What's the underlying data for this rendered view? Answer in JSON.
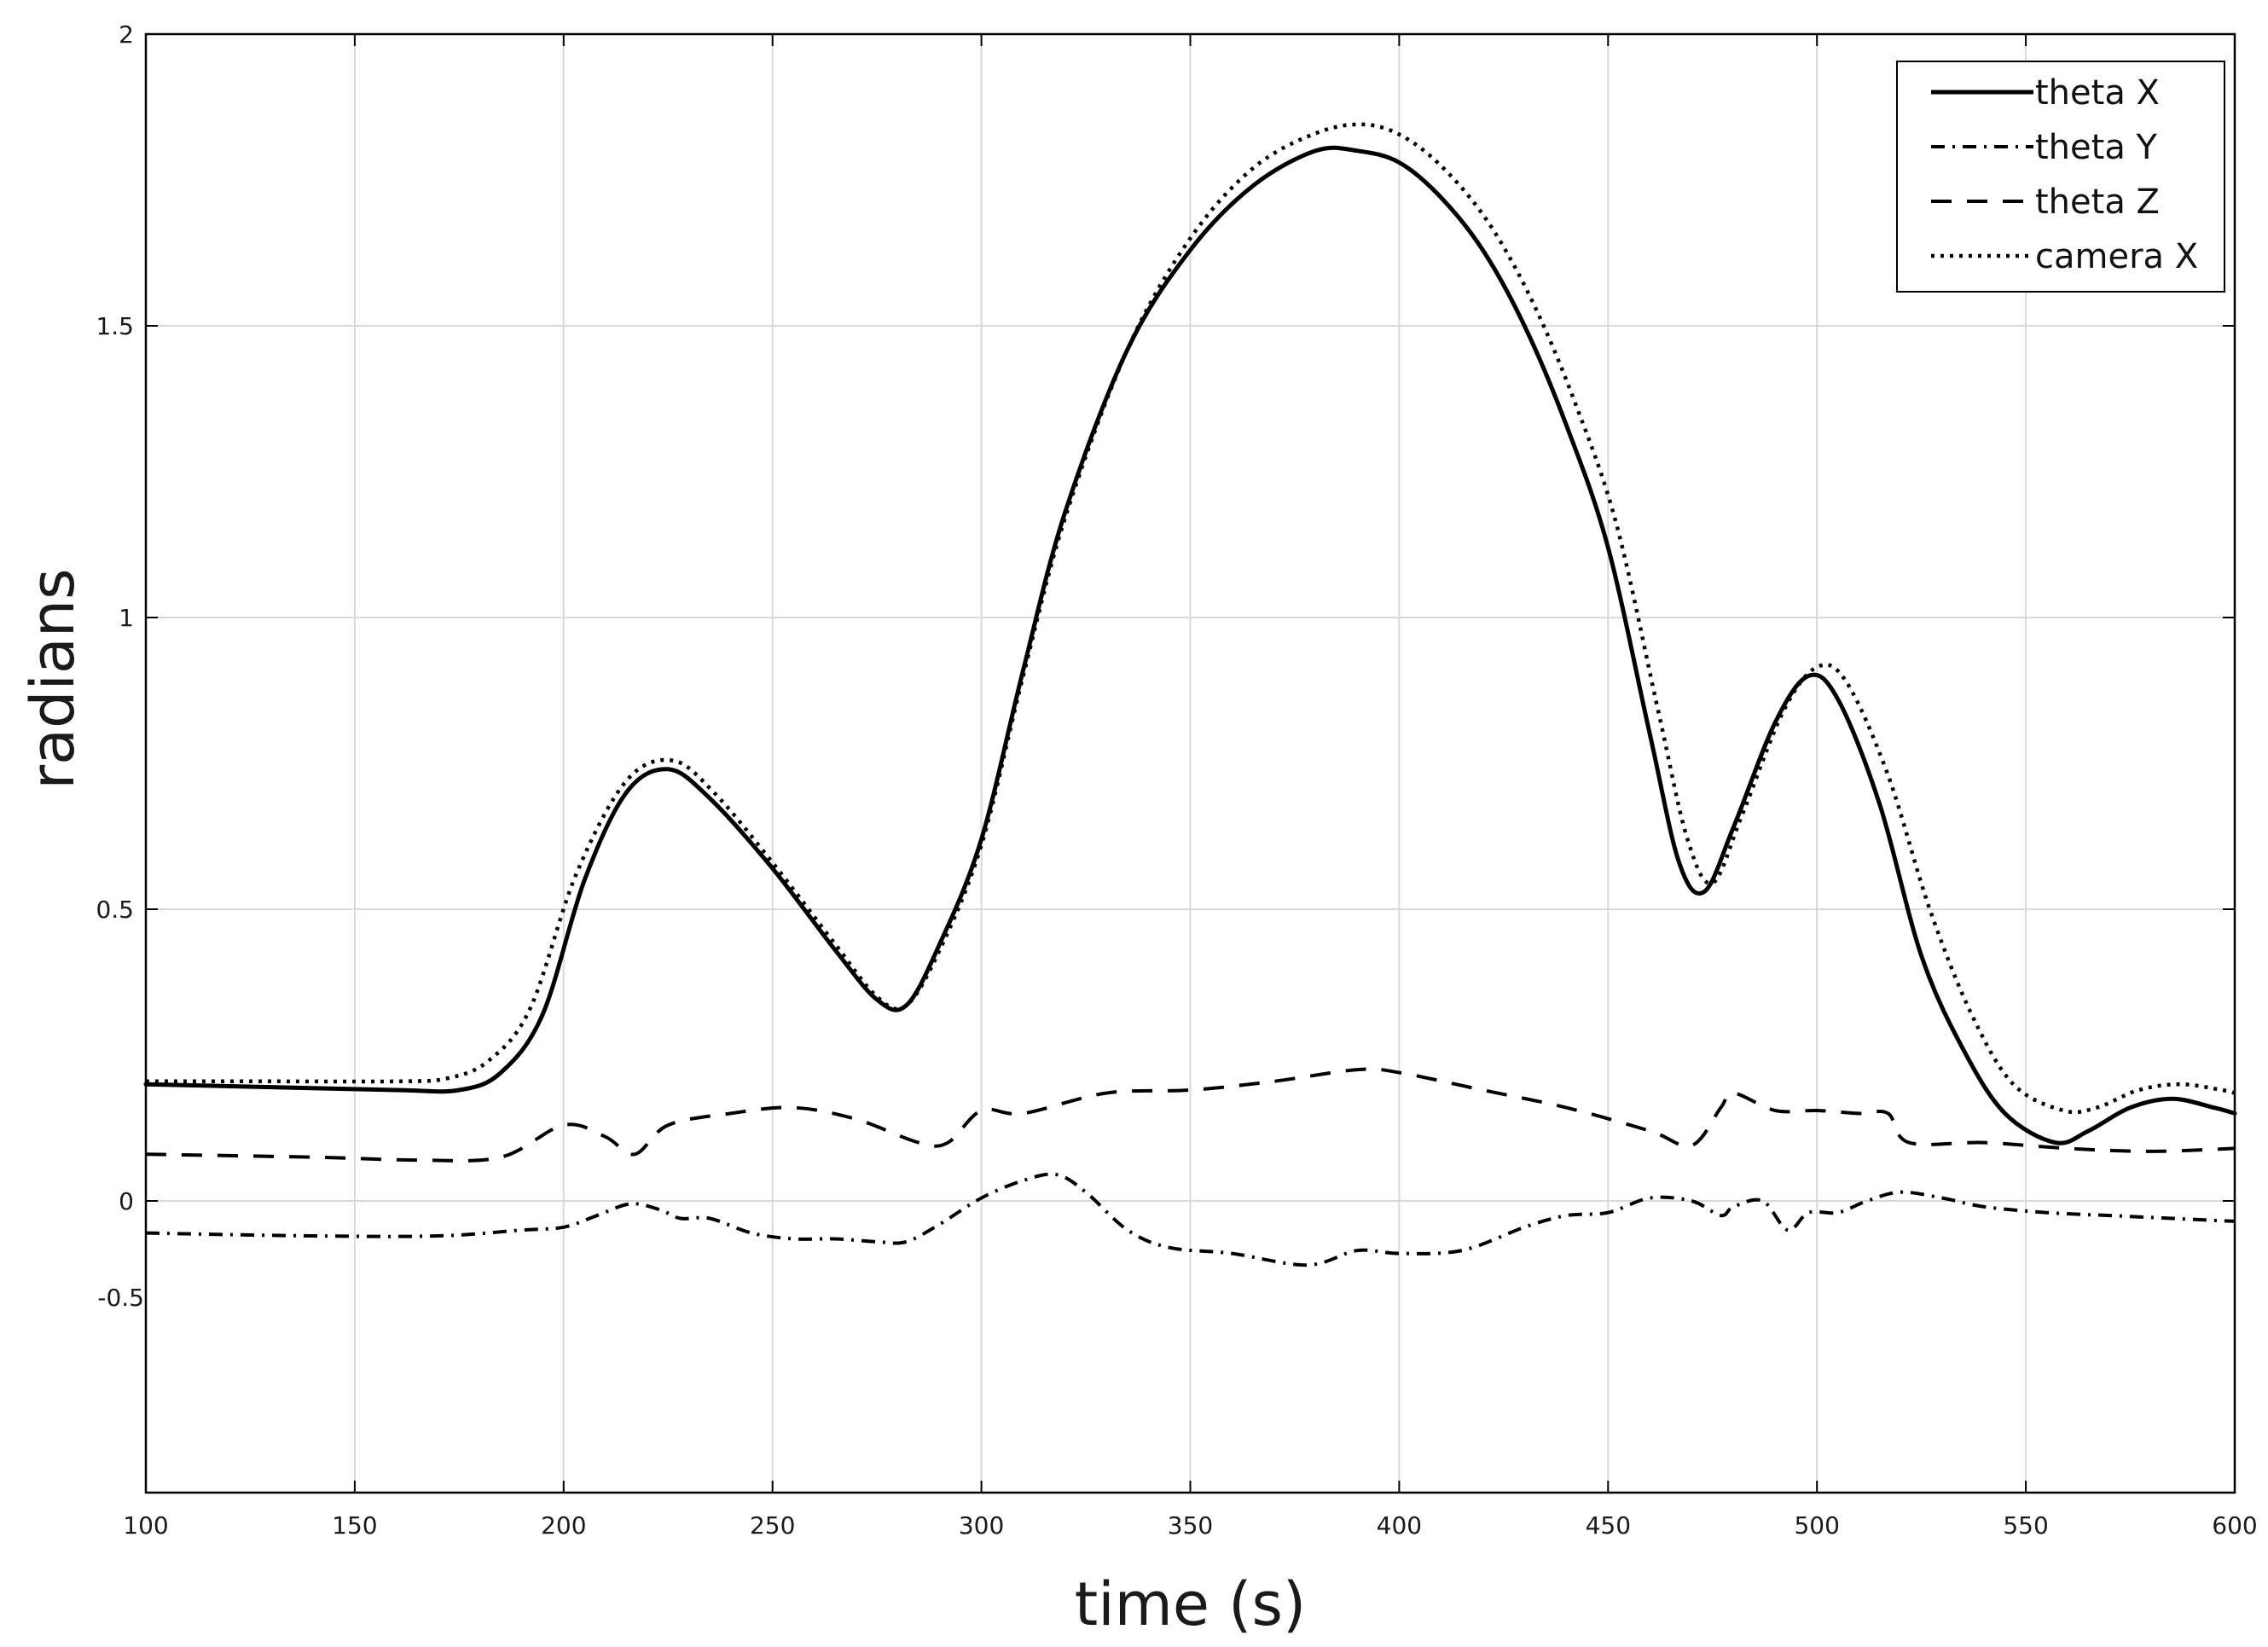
{
  "chart_data": {
    "type": "line",
    "xlabel": "time (s)",
    "ylabel": "radians",
    "xlim": [
      100,
      600
    ],
    "ylim": [
      -0.5,
      2
    ],
    "xticks": [
      100,
      150,
      200,
      250,
      300,
      350,
      400,
      450,
      500,
      550,
      600
    ],
    "xtick_labels": [
      "100",
      "150",
      "200",
      "250",
      "300",
      "350",
      "400",
      "450",
      "500",
      "550",
      "600"
    ],
    "yticks": [
      0,
      0.5,
      1,
      1.5,
      2
    ],
    "ytick_labels": [
      "0",
      "0.5",
      "1",
      "1.5",
      "2"
    ],
    "extra_ylabel": "-0.5",
    "extra_ylabel_value": -0.165,
    "grid": true,
    "legend_position": "top-right",
    "colors": {
      "line": "#000000",
      "grid": "#d9d9d9",
      "axis": "#000000"
    },
    "series": [
      {
        "name": "theta X",
        "style": "solid",
        "x": [
          100,
          130,
          160,
          175,
          185,
          195,
          205,
          215,
          225,
          235,
          250,
          265,
          275,
          282,
          290,
          300,
          310,
          320,
          335,
          350,
          365,
          380,
          390,
          400,
          410,
          420,
          430,
          440,
          450,
          460,
          467,
          473,
          480,
          490,
          498,
          505,
          515,
          525,
          535,
          545,
          557,
          565,
          575,
          585,
          595,
          600
        ],
        "y": [
          0.2,
          0.195,
          0.19,
          0.19,
          0.22,
          0.32,
          0.55,
          0.7,
          0.74,
          0.69,
          0.57,
          0.43,
          0.345,
          0.335,
          0.44,
          0.62,
          0.91,
          1.18,
          1.46,
          1.63,
          1.74,
          1.8,
          1.8,
          1.78,
          1.72,
          1.63,
          1.5,
          1.33,
          1.12,
          0.8,
          0.58,
          0.53,
          0.64,
          0.82,
          0.9,
          0.86,
          0.68,
          0.42,
          0.26,
          0.15,
          0.1,
          0.12,
          0.16,
          0.175,
          0.16,
          0.15
        ]
      },
      {
        "name": "theta Y",
        "style": "dashdot",
        "x": [
          100,
          140,
          170,
          190,
          200,
          208,
          216,
          223,
          228,
          235,
          245,
          255,
          265,
          275,
          282,
          290,
          300,
          310,
          318,
          325,
          335,
          345,
          360,
          378,
          390,
          400,
          415,
          430,
          440,
          450,
          460,
          470,
          477,
          480,
          487,
          493,
          498,
          505,
          512,
          520,
          530,
          540,
          555,
          570,
          585,
          600
        ],
        "y": [
          -0.055,
          -0.06,
          -0.06,
          -0.05,
          -0.045,
          -0.025,
          -0.005,
          -0.015,
          -0.03,
          -0.03,
          -0.055,
          -0.065,
          -0.065,
          -0.07,
          -0.07,
          -0.04,
          0.005,
          0.035,
          0.045,
          0.015,
          -0.05,
          -0.08,
          -0.09,
          -0.11,
          -0.085,
          -0.09,
          -0.085,
          -0.045,
          -0.025,
          -0.02,
          0.005,
          0.0,
          -0.025,
          -0.01,
          0.0,
          -0.05,
          -0.02,
          -0.02,
          0.0,
          0.015,
          0.005,
          -0.01,
          -0.02,
          -0.025,
          -0.03,
          -0.035
        ]
      },
      {
        "name": "theta Z",
        "style": "dashed",
        "x": [
          100,
          140,
          165,
          185,
          200,
          210,
          217,
          225,
          240,
          255,
          270,
          285,
          292,
          300,
          310,
          330,
          350,
          370,
          390,
          400,
          420,
          440,
          460,
          470,
          477,
          480,
          490,
          500,
          510,
          517,
          522,
          540,
          560,
          580,
          600
        ],
        "y": [
          0.08,
          0.075,
          0.07,
          0.075,
          0.13,
          0.11,
          0.08,
          0.13,
          0.15,
          0.16,
          0.14,
          0.1,
          0.1,
          0.155,
          0.15,
          0.185,
          0.19,
          0.205,
          0.225,
          0.22,
          0.19,
          0.16,
          0.12,
          0.095,
          0.16,
          0.185,
          0.155,
          0.155,
          0.15,
          0.15,
          0.1,
          0.1,
          0.09,
          0.085,
          0.09
        ]
      },
      {
        "name": "camera X",
        "style": "dotted",
        "x": [
          100,
          130,
          160,
          172,
          182,
          192,
          203,
          215,
          226,
          236,
          250,
          265,
          275,
          282,
          290,
          300,
          310,
          320,
          335,
          350,
          365,
          380,
          392,
          402,
          412,
          422,
          432,
          442,
          452,
          462,
          469,
          475,
          482,
          492,
          500,
          507,
          517,
          527,
          537,
          547,
          559,
          567,
          577,
          587,
          597,
          600
        ],
        "y": [
          0.205,
          0.205,
          0.205,
          0.21,
          0.24,
          0.33,
          0.56,
          0.72,
          0.755,
          0.7,
          0.58,
          0.44,
          0.35,
          0.335,
          0.43,
          0.61,
          0.9,
          1.17,
          1.46,
          1.65,
          1.77,
          1.83,
          1.845,
          1.82,
          1.76,
          1.67,
          1.54,
          1.37,
          1.16,
          0.84,
          0.62,
          0.545,
          0.66,
          0.84,
          0.915,
          0.89,
          0.73,
          0.5,
          0.32,
          0.2,
          0.155,
          0.16,
          0.19,
          0.2,
          0.19,
          0.185
        ]
      }
    ]
  }
}
